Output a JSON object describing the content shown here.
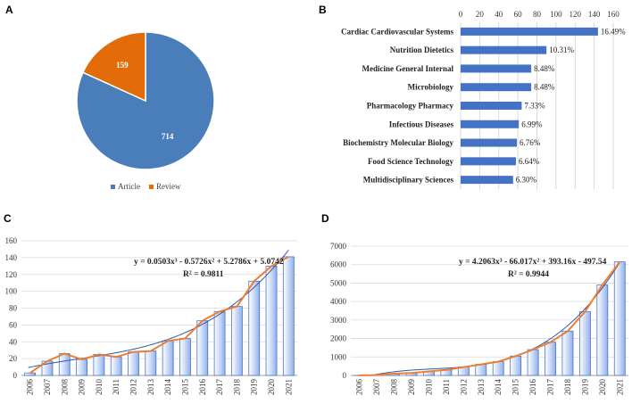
{
  "chart_data": [
    {
      "panel": "A",
      "type": "pie",
      "labels": [
        "Article",
        "Review"
      ],
      "values": [
        714,
        159
      ],
      "colors": [
        "#4a7ebb",
        "#e36c0a"
      ],
      "legend": "bottom"
    },
    {
      "panel": "B",
      "type": "bar",
      "orientation": "horizontal",
      "categories": [
        "Cardiac Cardiovascular Systems",
        "Nutrition Dietetics",
        "Medicine General Internal",
        "Microbiology",
        "Pharmacology Pharmacy",
        "Infectious Diseases",
        "Biochemistry Molecular Biology",
        "Food Science Technology",
        "Multidisciplinary Sciences"
      ],
      "values": [
        144,
        90,
        74,
        74,
        64,
        61,
        59,
        58,
        55
      ],
      "data_labels": [
        "16.49%",
        "10.31%",
        "8.48%",
        "8.48%",
        "7.33%",
        "6.99%",
        "6.76%",
        "6.64%",
        "6.30%"
      ],
      "xlim": [
        0,
        160
      ],
      "xticks": [
        "0",
        "20",
        "40",
        "60",
        "80",
        "100",
        "120",
        "140",
        "160"
      ],
      "axis_position": "top",
      "color": "#4472c4"
    },
    {
      "panel": "C",
      "type": "bar",
      "categories": [
        "2006",
        "2007",
        "2008",
        "2009",
        "2010",
        "2011",
        "2012",
        "2013",
        "2014",
        "2015",
        "2016",
        "2017",
        "2018",
        "2019",
        "2020",
        "2021"
      ],
      "values": [
        3,
        17,
        26,
        19,
        25,
        22,
        28,
        29,
        41,
        44,
        65,
        76,
        82,
        112,
        130,
        141
      ],
      "ylim": [
        0,
        160
      ],
      "yticks": [
        "0",
        "20",
        "40",
        "60",
        "80",
        "100",
        "120",
        "140",
        "160"
      ],
      "overlay_line": "values",
      "trendline": {
        "type": "polynomial",
        "coefficients": [
          5.0742,
          5.2786,
          -0.5726,
          0.0503
        ]
      },
      "equation": "y = 0.0503x³ - 0.5726x² + 5.2786x + 5.0742",
      "r_squared": "R² = 0.9811",
      "bar_color": "#c5d5f5",
      "line_color": "#ed7d31",
      "trend_color": "#2e5aa8"
    },
    {
      "panel": "D",
      "type": "bar",
      "categories": [
        "2006",
        "2007",
        "2008",
        "2009",
        "2010",
        "2011",
        "2012",
        "2013",
        "2014",
        "2015",
        "2016",
        "2017",
        "2018",
        "2019",
        "2020",
        "2021"
      ],
      "values": [
        5,
        20,
        100,
        130,
        220,
        300,
        450,
        600,
        750,
        1050,
        1400,
        1800,
        2400,
        3450,
        4900,
        6150
      ],
      "ylim": [
        0,
        7000
      ],
      "yticks": [
        "0",
        "1000",
        "2000",
        "3000",
        "4000",
        "5000",
        "6000",
        "7000"
      ],
      "overlay_line": "values",
      "trendline": {
        "type": "polynomial",
        "coefficients": [
          -497.54,
          393.16,
          -66.017,
          4.2063
        ]
      },
      "equation": "y = 4.2063x³ - 66.017x² + 393.16x - 497.54",
      "r_squared": "R² = 0.9944",
      "bar_color": "#c5d5f5",
      "line_color": "#ed7d31",
      "trend_color": "#2e5aa8"
    }
  ]
}
